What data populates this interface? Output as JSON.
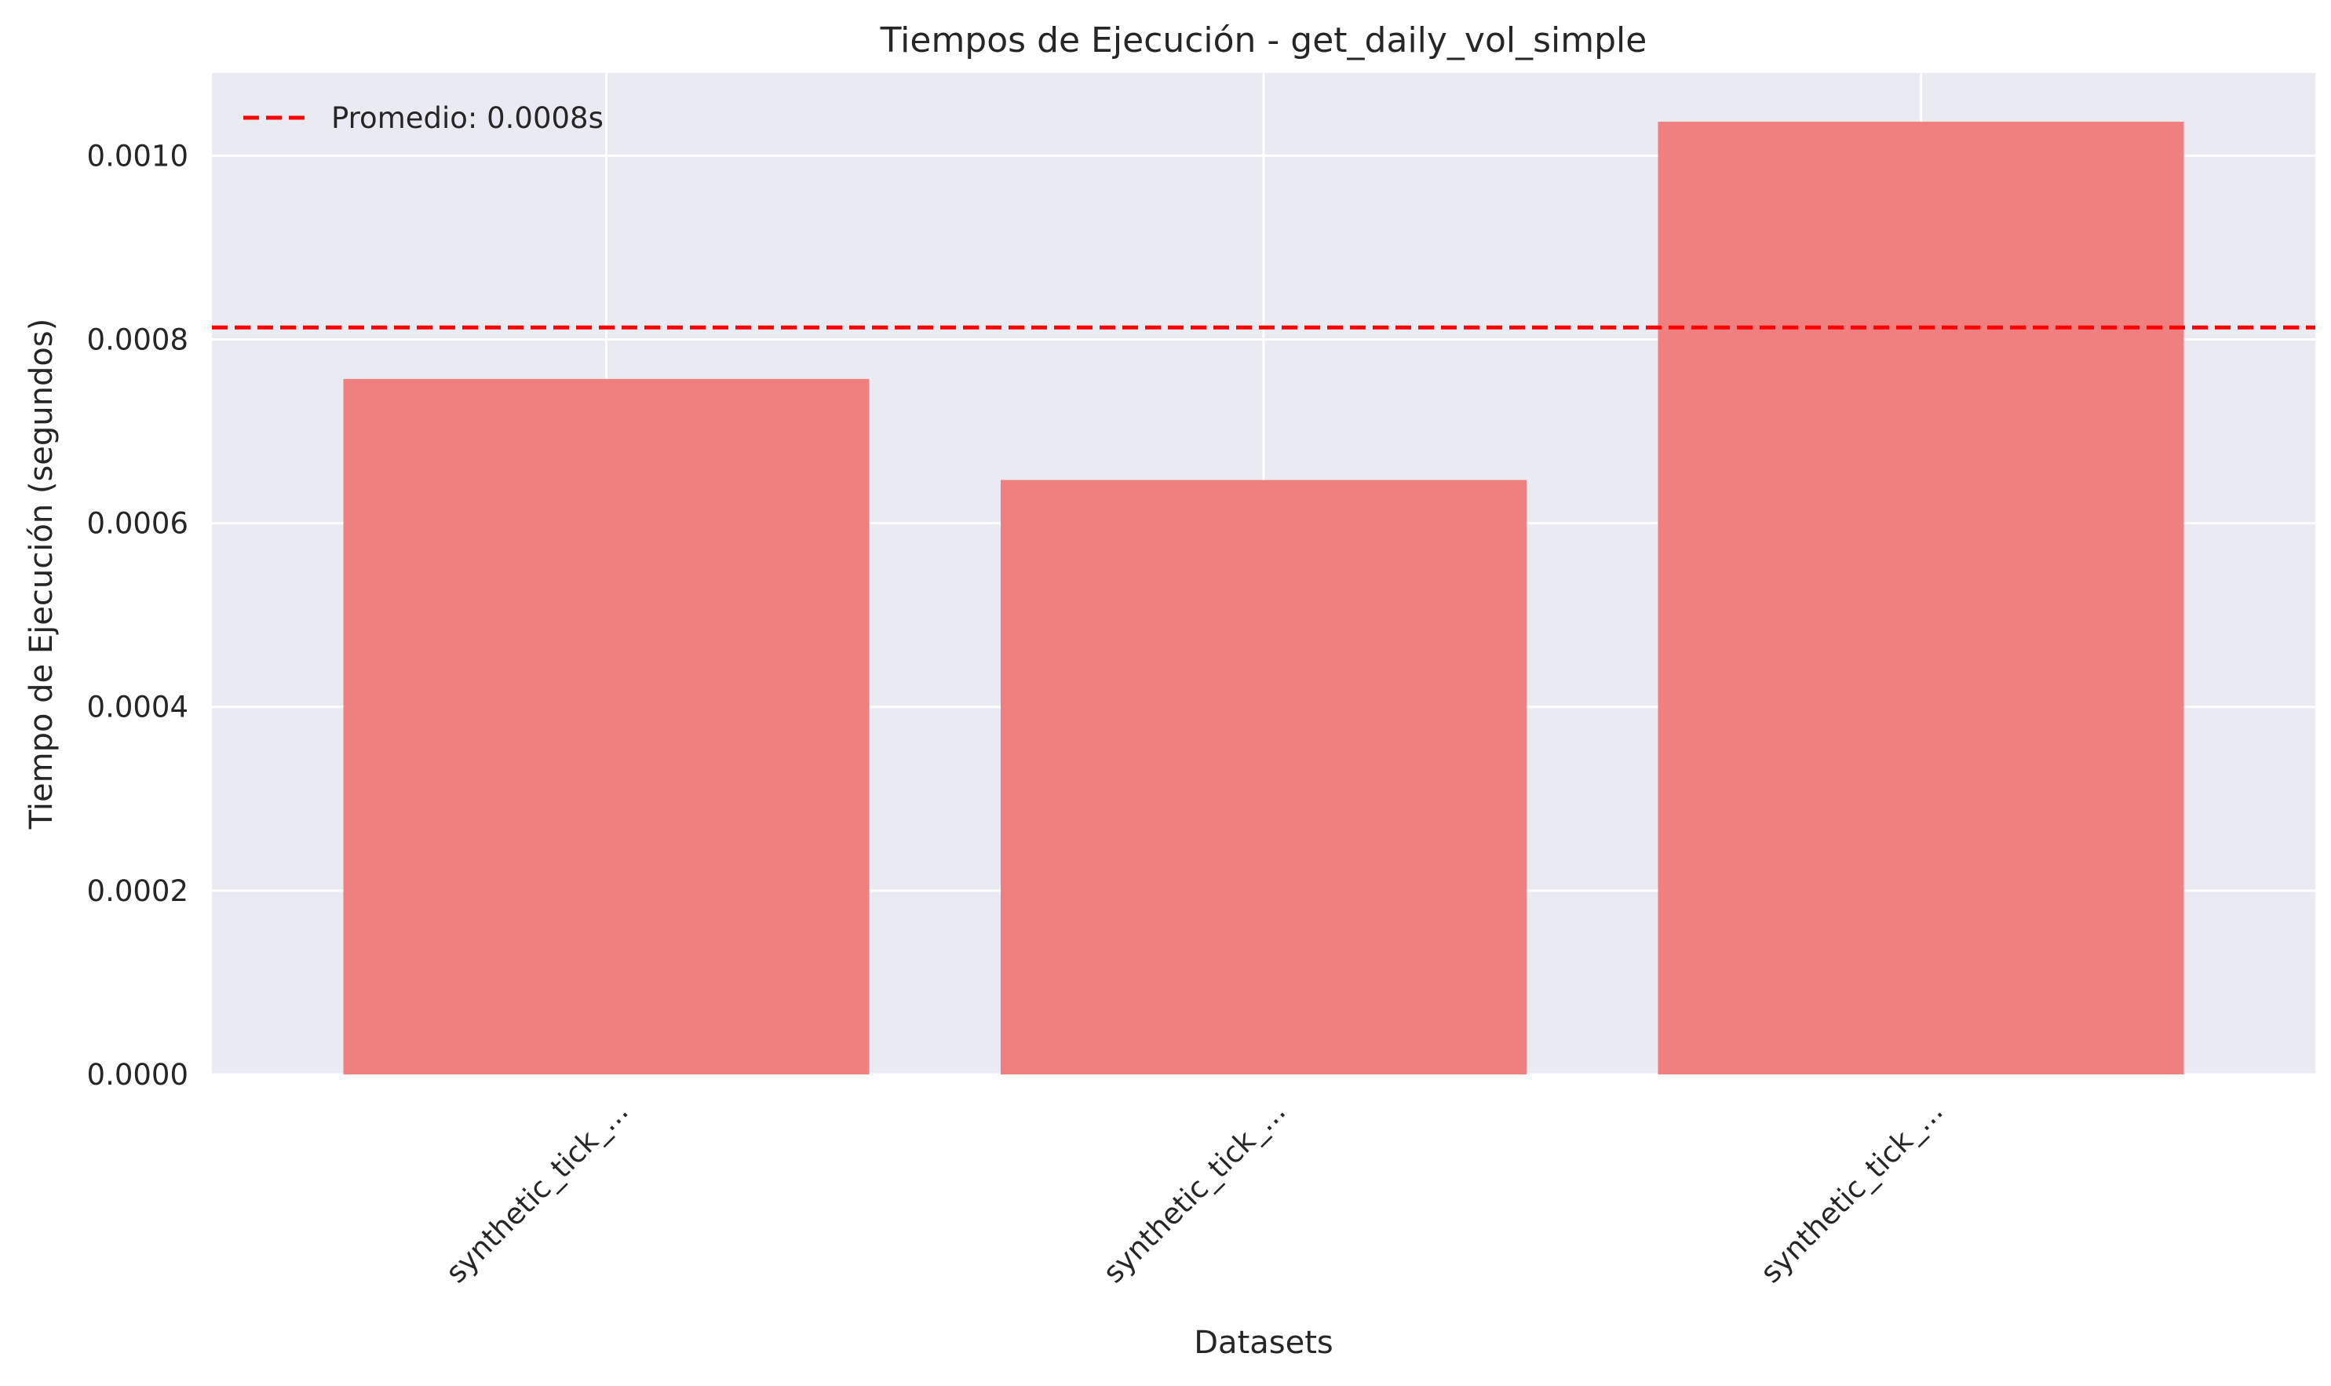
{
  "chart_data": {
    "type": "bar",
    "title": "Tiempos de Ejecución - get_daily_vol_simple",
    "xlabel": "Datasets",
    "ylabel": "Tiempo de Ejecución (segundos)",
    "categories": [
      "synthetic_tick_...",
      "synthetic_tick_...",
      "synthetic_tick_..."
    ],
    "values": [
      0.000757,
      0.000647,
      0.001037
    ],
    "ylim": [
      0,
      0.00109
    ],
    "yticks": [
      0.0,
      0.0002,
      0.0004,
      0.0006,
      0.0008,
      0.001
    ],
    "ytick_labels": [
      "0.0000",
      "0.0002",
      "0.0004",
      "0.0006",
      "0.0008",
      "0.0010"
    ],
    "reference_line": {
      "value": 0.000813,
      "label": "Promedio: 0.0008s",
      "style": "dashed"
    },
    "grid": true,
    "legend_position": "top-left",
    "colors": {
      "bar": "#f08080",
      "reference_line": "#ff0000",
      "plot_background": "#eaeaf2",
      "grid": "#ffffff"
    }
  }
}
